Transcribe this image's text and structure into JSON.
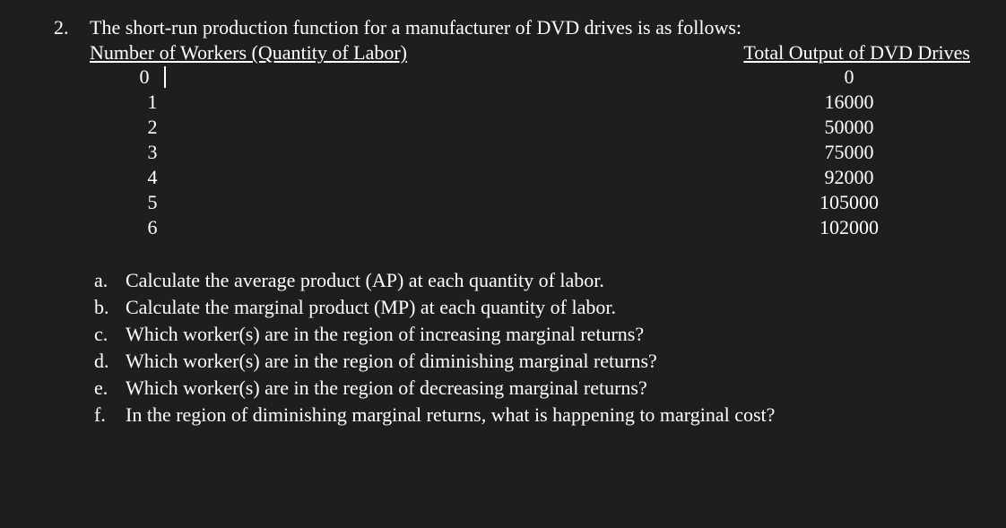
{
  "colors": {
    "background": "#1e1e1e",
    "text": "#ffffff"
  },
  "question_number": "2.",
  "intro_text": "The short-run production function for a manufacturer of DVD drives is as follows:",
  "column_headers": {
    "left": "Number of Workers (Quantity of Labor)",
    "right": "Total Output of DVD Drives"
  },
  "table_rows": [
    {
      "workers": "0",
      "output": "0",
      "has_cursor": true
    },
    {
      "workers": "1",
      "output": "16000",
      "has_cursor": false
    },
    {
      "workers": "2",
      "output": "50000",
      "has_cursor": false
    },
    {
      "workers": "3",
      "output": "75000",
      "has_cursor": false
    },
    {
      "workers": "4",
      "output": "92000",
      "has_cursor": false
    },
    {
      "workers": "5",
      "output": "105000",
      "has_cursor": false
    },
    {
      "workers": "6",
      "output": "102000",
      "has_cursor": false
    }
  ],
  "sub_questions": [
    {
      "letter": "a.",
      "text": "Calculate the average product (AP) at each quantity of labor."
    },
    {
      "letter": "b.",
      "text": "Calculate the marginal product (MP) at each quantity of labor."
    },
    {
      "letter": "c.",
      "text": "Which worker(s) are in the region of increasing marginal returns?"
    },
    {
      "letter": "d.",
      "text": "Which worker(s) are in the region of diminishing marginal returns?"
    },
    {
      "letter": "e.",
      "text": "Which worker(s) are in the region of decreasing marginal returns?"
    },
    {
      "letter": "f.",
      "text": "In the region of diminishing marginal returns, what is happening to marginal cost?"
    }
  ]
}
